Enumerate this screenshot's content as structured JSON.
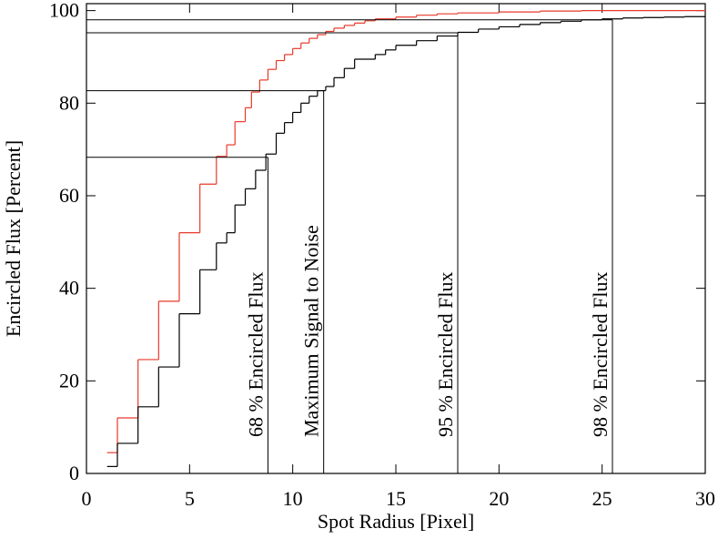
{
  "chart_data": {
    "type": "step",
    "xlabel": "Spot Radius [Pixel]",
    "ylabel": "Encircled Flux [Percent]",
    "xlim": [
      0,
      30
    ],
    "xticks": [
      0,
      5,
      10,
      15,
      20,
      25,
      30
    ],
    "ylim": [
      0,
      101.5
    ],
    "yticks": [
      0,
      20,
      40,
      60,
      80,
      100
    ],
    "series": [
      {
        "color": "#e8392a",
        "x": [
          1.0,
          1.5,
          2.5,
          3.5,
          4.5,
          5.5,
          6.3,
          6.8,
          7.2,
          7.7,
          8.0,
          8.4,
          8.8,
          9.2,
          9.6,
          10.0,
          10.4,
          10.8,
          11.2,
          11.6,
          12.0,
          12.5,
          13.0,
          13.5,
          14.0,
          15.0,
          16.0,
          17.0,
          18.0,
          20.0,
          22.0,
          24.0
        ],
        "values": [
          4.5,
          12,
          24.6,
          37.2,
          52,
          62.5,
          68.5,
          71,
          76,
          79,
          82.4,
          85,
          87.3,
          89.2,
          90.5,
          91.8,
          93,
          94,
          94.8,
          95.5,
          96.2,
          96.8,
          97.3,
          97.8,
          98.2,
          98.6,
          99,
          99.3,
          99.5,
          99.7,
          99.9,
          100
        ]
      },
      {
        "color": "#000000",
        "x": [
          1.0,
          1.5,
          2.5,
          3.5,
          4.5,
          5.5,
          6.3,
          6.8,
          7.2,
          7.7,
          8.2,
          8.7,
          9.2,
          9.6,
          10.0,
          10.4,
          10.8,
          11.2,
          11.6,
          12.0,
          12.5,
          13.0,
          14.0,
          14.5,
          15.0,
          16.0,
          17.0,
          18.0,
          19.0,
          20.0,
          21.0,
          22.0,
          23.0,
          24.0,
          25.0,
          26.0,
          27.0,
          28.0,
          29.0
        ],
        "values": [
          1.5,
          6.5,
          14.4,
          23,
          34.5,
          44,
          49.8,
          52,
          58,
          61.5,
          65.5,
          69,
          73.5,
          75.8,
          78,
          80,
          81.5,
          82.7,
          83.6,
          85.5,
          87.5,
          89.5,
          90.5,
          91.5,
          92.5,
          93.5,
          94.5,
          95.3,
          96,
          96.5,
          97,
          97.4,
          97.7,
          98,
          98.2,
          98.4,
          98.5,
          98.6,
          98.7
        ]
      }
    ],
    "annotations": [
      {
        "label": "68 % Encircled Flux",
        "x": 8.8,
        "y": 68.3
      },
      {
        "label": "Maximum Signal to Noise",
        "x": 11.5,
        "y": 82.7
      },
      {
        "label": "95 % Encircled Flux",
        "x": 18,
        "y": 95.2
      },
      {
        "label": "98 % Encircled Flux",
        "x": 25.5,
        "y": 98
      }
    ]
  }
}
